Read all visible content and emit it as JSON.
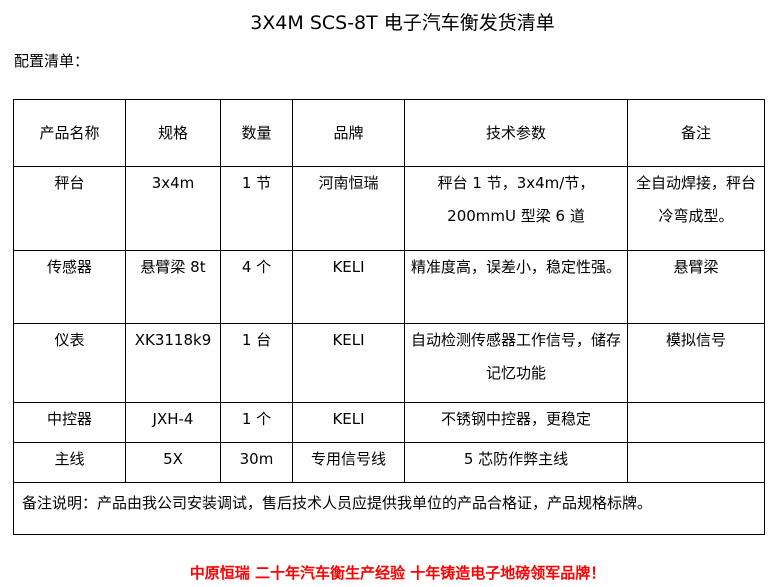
{
  "title": "3X4M SCS-8T 电子汽车衡发货清单",
  "subtitle": "配置清单：",
  "table": {
    "headers": [
      "产品名称",
      "规格",
      "数量",
      "品牌",
      "技术参数",
      "备注"
    ],
    "rows": [
      [
        "秤台",
        "3x4m",
        "1 节",
        "河南恒瑞",
        "秤台 1 节，3x4m/节，200mmU 型梁 6 道",
        "全自动焊接，秤台冷弯成型。"
      ],
      [
        "传感器",
        "悬臂梁 8t",
        "4 个",
        "KELI",
        "精准度高，误差小，稳定性强。",
        "悬臂梁"
      ],
      [
        "仪表",
        "XK3118k9",
        "1 台",
        "KELI",
        "自动检测传感器工作信号，储存记忆功能",
        "模拟信号"
      ],
      [
        "中控器",
        "JXH-4",
        "1 个",
        "KELI",
        "不锈钢中控器，更稳定",
        ""
      ],
      [
        "主线",
        "5X",
        "30m",
        "专用信号线",
        "5 芯防作弊主线",
        ""
      ]
    ],
    "note": "备注说明：产品由我公司安装调试，售后技术人员应提供我单位的产品合格证，产品规格标牌。"
  },
  "footer": "中原恒瑞 二十年汽车衡生产经验 十年铸造电子地磅领军品牌！"
}
